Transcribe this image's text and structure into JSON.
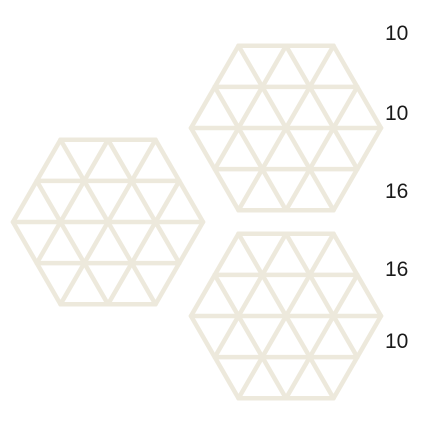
{
  "puzzle": {
    "row_clues": [
      "10",
      "10",
      "16",
      "16",
      "10"
    ],
    "line_color": "#ede9dc",
    "text_color": "#1a1a1a",
    "background": "#ffffff"
  }
}
